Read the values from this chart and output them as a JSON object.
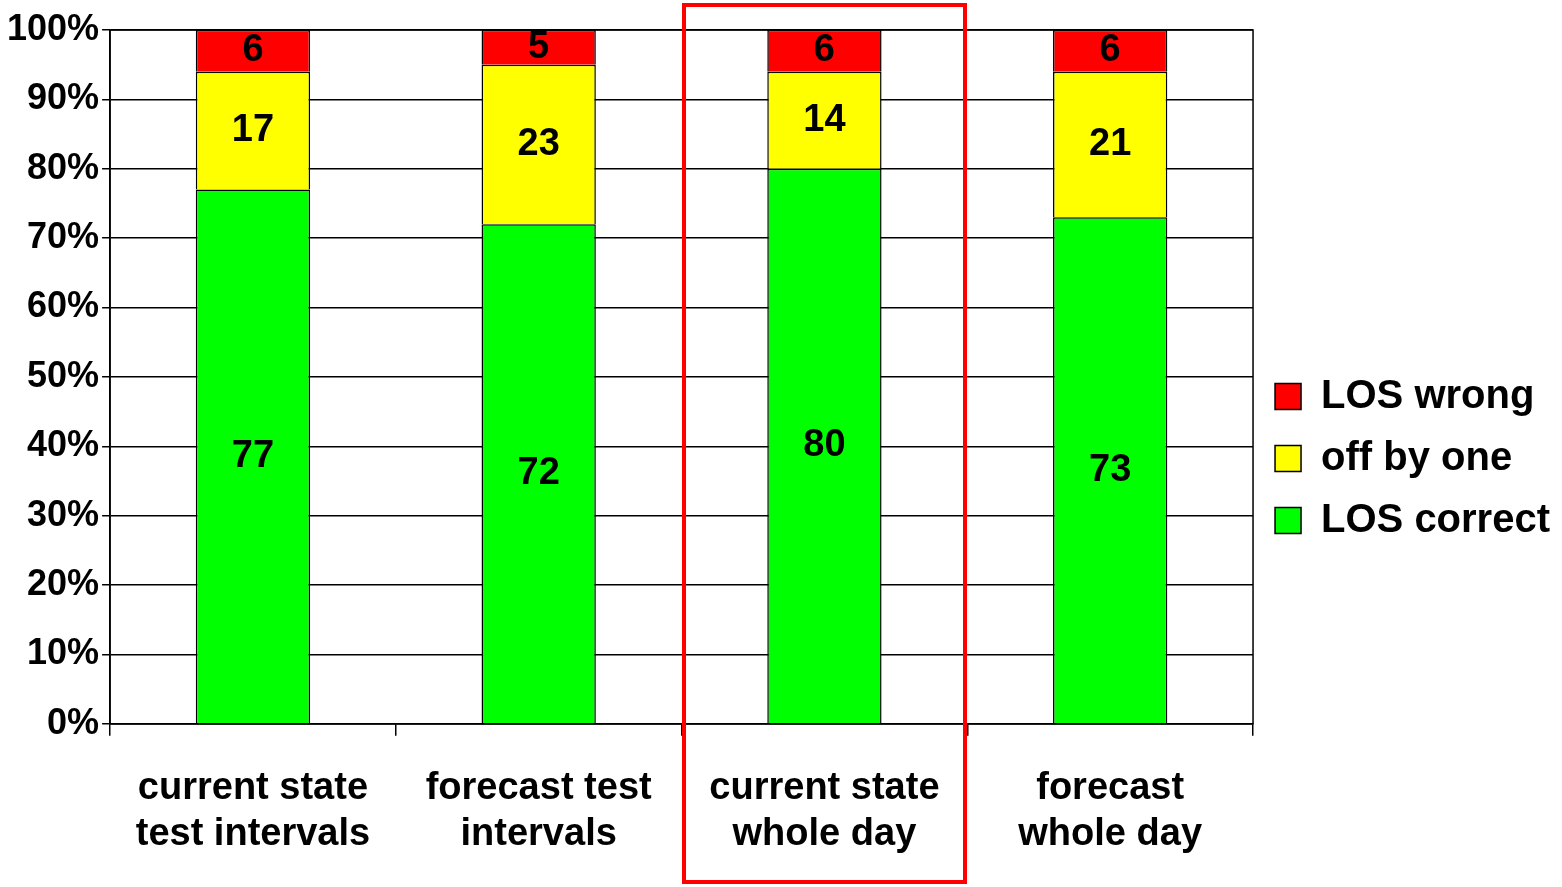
{
  "chart_data": {
    "type": "bar",
    "stacked": true,
    "categories": [
      "current state test intervals",
      "forecast test intervals",
      "current state whole day",
      "forecast whole day"
    ],
    "series": [
      {
        "name": "LOS correct",
        "color": "#00ff00",
        "values": [
          77,
          72,
          80,
          73
        ]
      },
      {
        "name": "off by one",
        "color": "#ffff00",
        "values": [
          17,
          23,
          14,
          21
        ]
      },
      {
        "name": "LOS wrong",
        "color": "#ff0000",
        "values": [
          6,
          5,
          6,
          6
        ]
      }
    ],
    "ylim": [
      0,
      100
    ],
    "yticks": [
      {
        "value": 0,
        "label": "0%"
      },
      {
        "value": 10,
        "label": "10%"
      },
      {
        "value": 20,
        "label": "20%"
      },
      {
        "value": 30,
        "label": "30%"
      },
      {
        "value": 40,
        "label": "40%"
      },
      {
        "value": 50,
        "label": "50%"
      },
      {
        "value": 60,
        "label": "60%"
      },
      {
        "value": 70,
        "label": "70%"
      },
      {
        "value": 80,
        "label": "80%"
      },
      {
        "value": 90,
        "label": "90%"
      },
      {
        "value": 100,
        "label": "100%"
      }
    ],
    "grid": "y",
    "legend": "right",
    "data_labels": true
  }
}
